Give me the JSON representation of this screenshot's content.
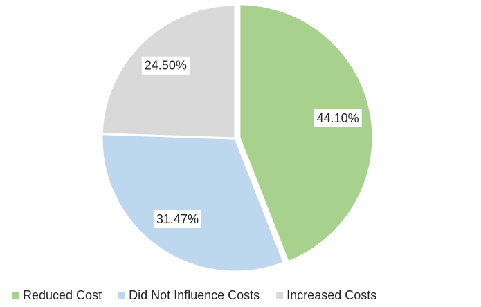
{
  "chart_data": {
    "type": "pie",
    "categories": [
      "Reduced Cost",
      "Did Not Influence Costs",
      "Increased Costs"
    ],
    "values": [
      44.1,
      31.47,
      24.5
    ],
    "value_labels": [
      "44.10%",
      "31.47%",
      "24.50%"
    ],
    "colors": [
      "#a9d18e",
      "#bdd7ee",
      "#d9d9d9"
    ],
    "legend": "bottom"
  }
}
